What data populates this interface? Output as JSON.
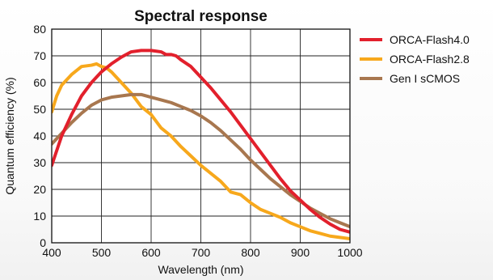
{
  "chart_data": {
    "type": "line",
    "title": "Spectral response",
    "xlabel": "Wavelength (nm)",
    "ylabel": "Quantum efficiency (%)",
    "xlim": [
      400,
      1000
    ],
    "ylim": [
      0,
      80
    ],
    "x_ticks": [
      400,
      500,
      600,
      700,
      800,
      900,
      1000
    ],
    "y_ticks": [
      0,
      10,
      20,
      30,
      40,
      50,
      60,
      70,
      80
    ],
    "grid": true,
    "legend_position": "right",
    "series": [
      {
        "name": "ORCA-Flash4.0",
        "color": "#e2202c",
        "x": [
          400,
          420,
          440,
          460,
          480,
          500,
          520,
          540,
          560,
          580,
          600,
          620,
          630,
          640,
          650,
          660,
          680,
          700,
          720,
          740,
          760,
          780,
          800,
          820,
          840,
          860,
          880,
          900,
          920,
          940,
          960,
          980,
          1000
        ],
        "y": [
          29,
          40,
          48,
          55,
          60,
          64,
          67,
          69.5,
          71.5,
          72,
          72,
          71.5,
          70.5,
          70.5,
          70,
          68.5,
          66,
          62,
          58,
          53.5,
          49,
          44,
          39,
          34,
          29,
          24,
          19.5,
          16,
          12.5,
          9.5,
          7,
          5,
          4
        ]
      },
      {
        "name": "ORCA-Flash2.8",
        "color": "#f7a81c",
        "x": [
          400,
          410,
          420,
          440,
          460,
          480,
          490,
          500,
          510,
          520,
          540,
          560,
          580,
          600,
          620,
          640,
          660,
          680,
          700,
          720,
          740,
          760,
          780,
          800,
          820,
          840,
          860,
          880,
          900,
          920,
          940,
          960,
          980,
          1000
        ],
        "y": [
          49,
          55,
          59,
          63,
          66,
          66.5,
          67,
          66,
          65.5,
          64,
          60,
          56,
          51,
          48,
          43,
          40,
          36,
          32.5,
          29,
          26,
          23,
          19,
          18,
          15,
          12.5,
          11,
          9.5,
          7.5,
          6,
          4.5,
          3.5,
          2.5,
          2,
          1.5
        ]
      },
      {
        "name": "Gen I sCMOS",
        "color": "#a8774f",
        "x": [
          400,
          420,
          440,
          460,
          480,
          500,
          520,
          540,
          560,
          580,
          600,
          620,
          640,
          660,
          680,
          700,
          720,
          740,
          760,
          780,
          800,
          820,
          840,
          860,
          880,
          900,
          920,
          940,
          960,
          980,
          1000
        ],
        "y": [
          37,
          41,
          45,
          48.5,
          51.5,
          53.5,
          54.5,
          55,
          55.5,
          55.5,
          54.5,
          53.5,
          52.5,
          51,
          49.5,
          47.5,
          45,
          42,
          38.5,
          35,
          31,
          27.5,
          24,
          21,
          18,
          15.5,
          13,
          11,
          9,
          7.5,
          6
        ]
      }
    ]
  }
}
